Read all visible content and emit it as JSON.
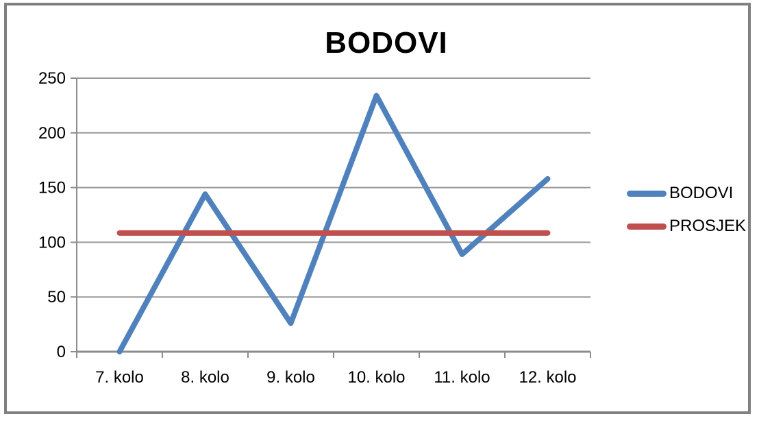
{
  "chart_data": {
    "type": "line",
    "title": "BODOVI",
    "categories": [
      "7. kolo",
      "8. kolo",
      "9. kolo",
      "10. kolo",
      "11. kolo",
      "12. kolo"
    ],
    "series": [
      {
        "name": "BODOVI",
        "color": "#4F81BD",
        "values": [
          0,
          144,
          26,
          234,
          89,
          158
        ]
      },
      {
        "name": "PROSJEK",
        "color": "#C0504D",
        "values": [
          108.5,
          108.5,
          108.5,
          108.5,
          108.5,
          108.5
        ]
      }
    ],
    "xlabel": "",
    "ylabel": "",
    "ylim": [
      0,
      250
    ],
    "yticks": [
      0,
      50,
      100,
      150,
      200,
      250
    ],
    "grid": true,
    "legend_position": "right",
    "grid_color": "#999999",
    "axis_color": "#8C8C8C",
    "frame_color": "#808080"
  }
}
